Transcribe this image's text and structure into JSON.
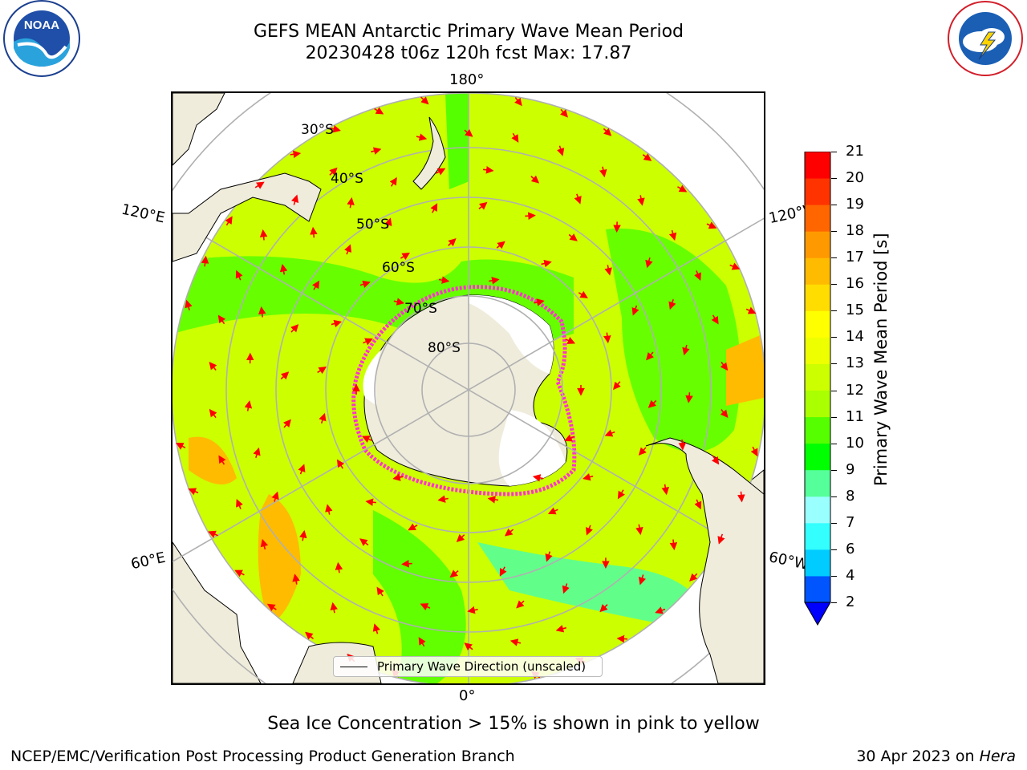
{
  "header": {
    "title_line1": "GEFS MEAN Antarctic Primary Wave Mean Period",
    "title_line2": "20230428 t06z 120h fcst   Max: 17.87"
  },
  "logos": {
    "noaa_text": "NOAA",
    "noaa_ring_text": "NATIONAL OCEANIC AND ATMOSPHERIC ADMINISTRATION · U.S. DEPARTMENT OF COMMERCE",
    "nws_ring_text": "NATIONAL WEATHER SERVICE"
  },
  "map": {
    "projection": "south polar stereographic",
    "lon_labels": {
      "top": "180°",
      "bottom": "0°",
      "upper_left": "120°E",
      "upper_right": "120°W",
      "lower_left": "60°E",
      "lower_right": "60°W"
    },
    "lat_labels": [
      "30°S",
      "40°S",
      "50°S",
      "60°S",
      "70°S",
      "80°S"
    ],
    "legend_text": "Primary Wave Direction (unscaled)",
    "colors": {
      "land": "#efecdc",
      "sea_ice": "#ffffff",
      "ice_edge": "#ff33cc",
      "arrow": "#ff0000",
      "gridline": "#b0b0b0"
    }
  },
  "colorbar": {
    "label": "Primary Wave Mean Period [s]",
    "ticks": [
      "2",
      "4",
      "6",
      "7",
      "8",
      "9",
      "10",
      "11",
      "12",
      "13",
      "14",
      "15",
      "16",
      "17",
      "18",
      "19",
      "20",
      "21"
    ],
    "colors": [
      "#0055ff",
      "#00ccff",
      "#33ffff",
      "#99ffff",
      "#55ff99",
      "#00ff00",
      "#55ff00",
      "#aaff00",
      "#ccff00",
      "#eeff00",
      "#ffff00",
      "#ffdd00",
      "#ffbb00",
      "#ff9900",
      "#ff6600",
      "#ff3300",
      "#ff0000"
    ],
    "extend_color": "#0000ff"
  },
  "note": "Sea Ice Concentration > 15% is shown in pink to yellow",
  "footer": {
    "left": "NCEP/EMC/Verification Post Processing Product Generation Branch",
    "right_prefix": "30 Apr 2023 on ",
    "right_machine": "Hera"
  }
}
